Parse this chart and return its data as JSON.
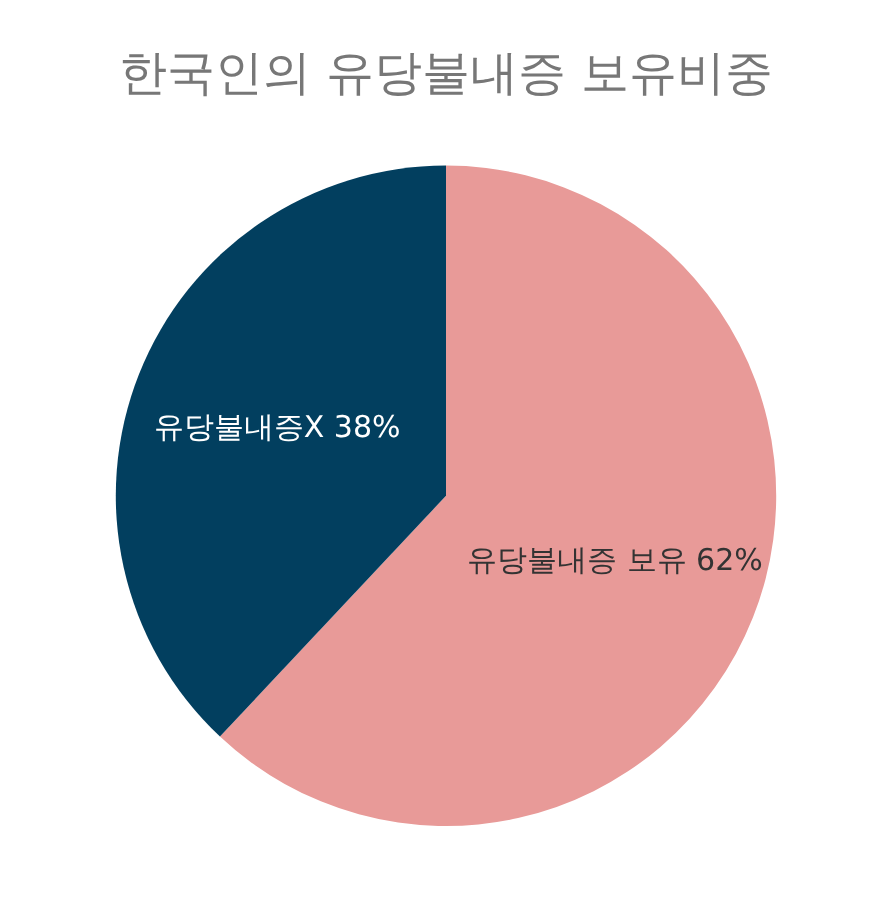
{
  "chart_data": {
    "type": "pie",
    "title": "한국인의 유당불내증 보유비중",
    "categories": [
      "유당불내증 보유",
      "유당불내증X"
    ],
    "values": [
      62,
      38
    ],
    "colors": [
      "#e89a98",
      "#023f5f"
    ],
    "value_labels": [
      "62%",
      "38%"
    ],
    "legend": false
  }
}
